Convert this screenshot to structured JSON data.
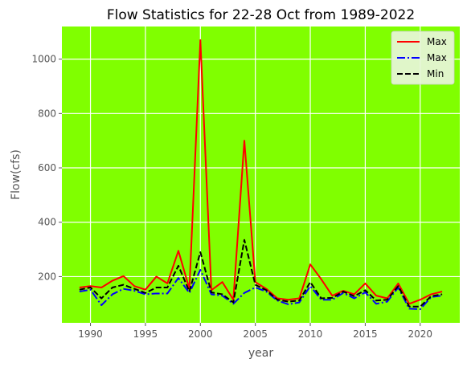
{
  "chart_data": {
    "type": "line",
    "title": "Flow Statistics for 22-28 Oct from 1989-2022",
    "xlabel": "year",
    "ylabel": "Flow(cfs)",
    "xlim": [
      1987.4,
      2023.6
    ],
    "ylim": [
      30,
      1120
    ],
    "xticks": [
      1990,
      1995,
      2000,
      2005,
      2010,
      2015,
      2020
    ],
    "yticks": [
      200,
      400,
      600,
      800,
      1000
    ],
    "grid": true,
    "legend_position": "top-right",
    "background_color": "#80ff00",
    "x": [
      1989,
      1990,
      1991,
      1992,
      1993,
      1994,
      1995,
      1996,
      1997,
      1998,
      1999,
      2000,
      2001,
      2002,
      2003,
      2004,
      2005,
      2006,
      2007,
      2008,
      2009,
      2010,
      2011,
      2012,
      2013,
      2014,
      2015,
      2016,
      2017,
      2018,
      2019,
      2020,
      2021,
      2022
    ],
    "series": [
      {
        "name": "Max",
        "color": "#ff0000",
        "style": "solid",
        "values": [
          160,
          165,
          160,
          185,
          202,
          165,
          152,
          200,
          175,
          295,
          155,
          1070,
          150,
          180,
          115,
          700,
          180,
          155,
          120,
          115,
          120,
          245,
          190,
          130,
          148,
          135,
          175,
          130,
          120,
          175,
          100,
          115,
          135,
          145
        ]
      },
      {
        "name": "Max",
        "color": "#0000ff",
        "style": "dashdot",
        "values": [
          145,
          152,
          95,
          135,
          155,
          148,
          135,
          138,
          138,
          195,
          140,
          225,
          135,
          130,
          100,
          140,
          160,
          145,
          112,
          98,
          105,
          165,
          115,
          115,
          140,
          120,
          142,
          100,
          108,
          160,
          82,
          80,
          125,
          130
        ]
      },
      {
        "name": "Min",
        "color": "#000000",
        "style": "dashed",
        "values": [
          152,
          160,
          120,
          160,
          170,
          155,
          140,
          160,
          160,
          240,
          145,
          290,
          142,
          135,
          105,
          335,
          170,
          150,
          115,
          108,
          112,
          180,
          120,
          122,
          145,
          128,
          150,
          112,
          115,
          165,
          90,
          90,
          128,
          135
        ]
      }
    ]
  }
}
